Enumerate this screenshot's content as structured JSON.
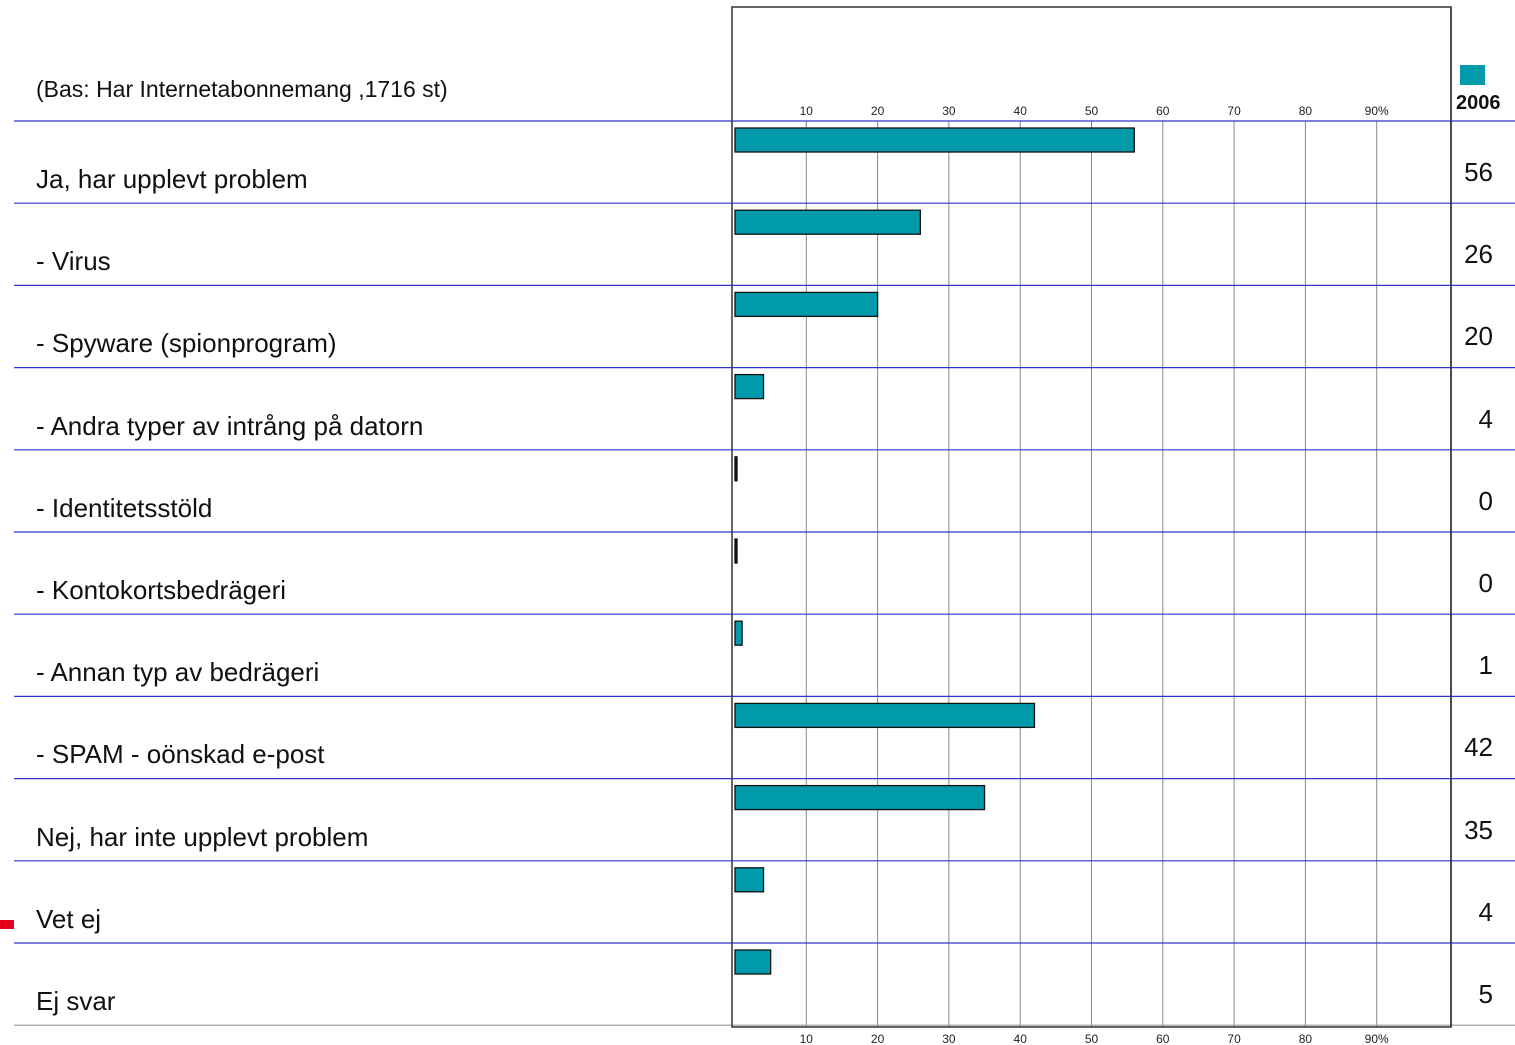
{
  "base_note": "(Bas: Har Internetabonnemang ,1716 st)",
  "legend": {
    "year": "2006",
    "color": "#009aaa"
  },
  "chart_data": {
    "type": "bar",
    "orientation": "horizontal",
    "categories": [
      "Ja, har upplevt problem",
      "-  Virus",
      "-  Spyware (spionprogram)",
      "-  Andra typer av intrång på datorn",
      "-  Identitetsstöld",
      "-  Kontokortsbedrägeri",
      "-  Annan typ av bedrägeri",
      "-  SPAM - oönskad e-post",
      "Nej, har inte upplevt problem",
      "Vet ej",
      "Ej svar"
    ],
    "series": [
      {
        "name": "2006",
        "values": [
          56,
          26,
          20,
          4,
          0,
          0,
          1,
          42,
          35,
          4,
          5
        ]
      }
    ],
    "value_labels": [
      "56",
      "26",
      "20",
      "4",
      "0",
      "0",
      "1",
      "42",
      "35",
      "4",
      "5"
    ],
    "xlim": [
      0,
      100
    ],
    "x_ticks": [
      "10",
      "20",
      "30",
      "40",
      "50",
      "60",
      "70",
      "80",
      "90%"
    ],
    "grid": true,
    "colors": {
      "bar": "#009aaa",
      "row_line": "#3333cc",
      "grid": "#888888"
    }
  }
}
